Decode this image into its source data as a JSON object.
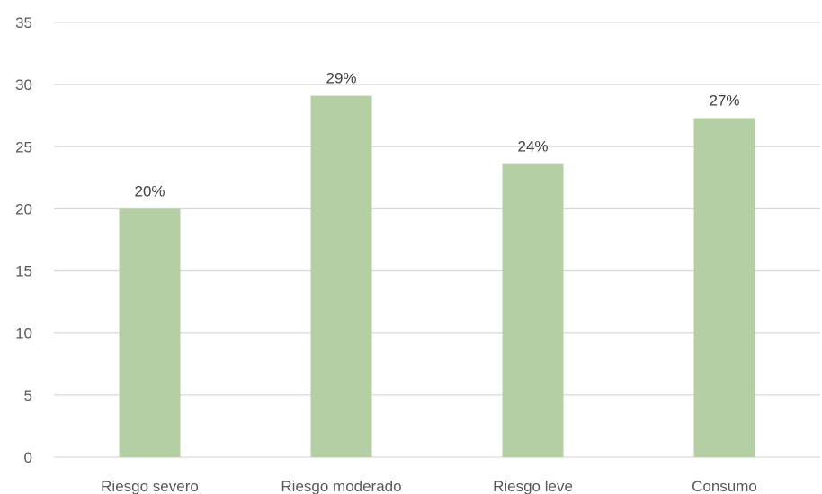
{
  "chart_data": {
    "type": "bar",
    "categories": [
      "Riesgo severo",
      "Riesgo moderado",
      "Riesgo leve",
      "Consumo"
    ],
    "values": [
      20,
      29.1,
      23.6,
      27.3
    ],
    "data_labels": [
      "20%",
      "29%",
      "24%",
      "27%"
    ],
    "title": "",
    "xlabel": "",
    "ylabel": "",
    "ylim": [
      0,
      35
    ],
    "yticks": [
      0,
      5,
      10,
      15,
      20,
      25,
      30,
      35
    ],
    "grid": true,
    "legend": "none",
    "bar_color": "#b4cfa4",
    "grid_color": "#d9d9d9"
  }
}
